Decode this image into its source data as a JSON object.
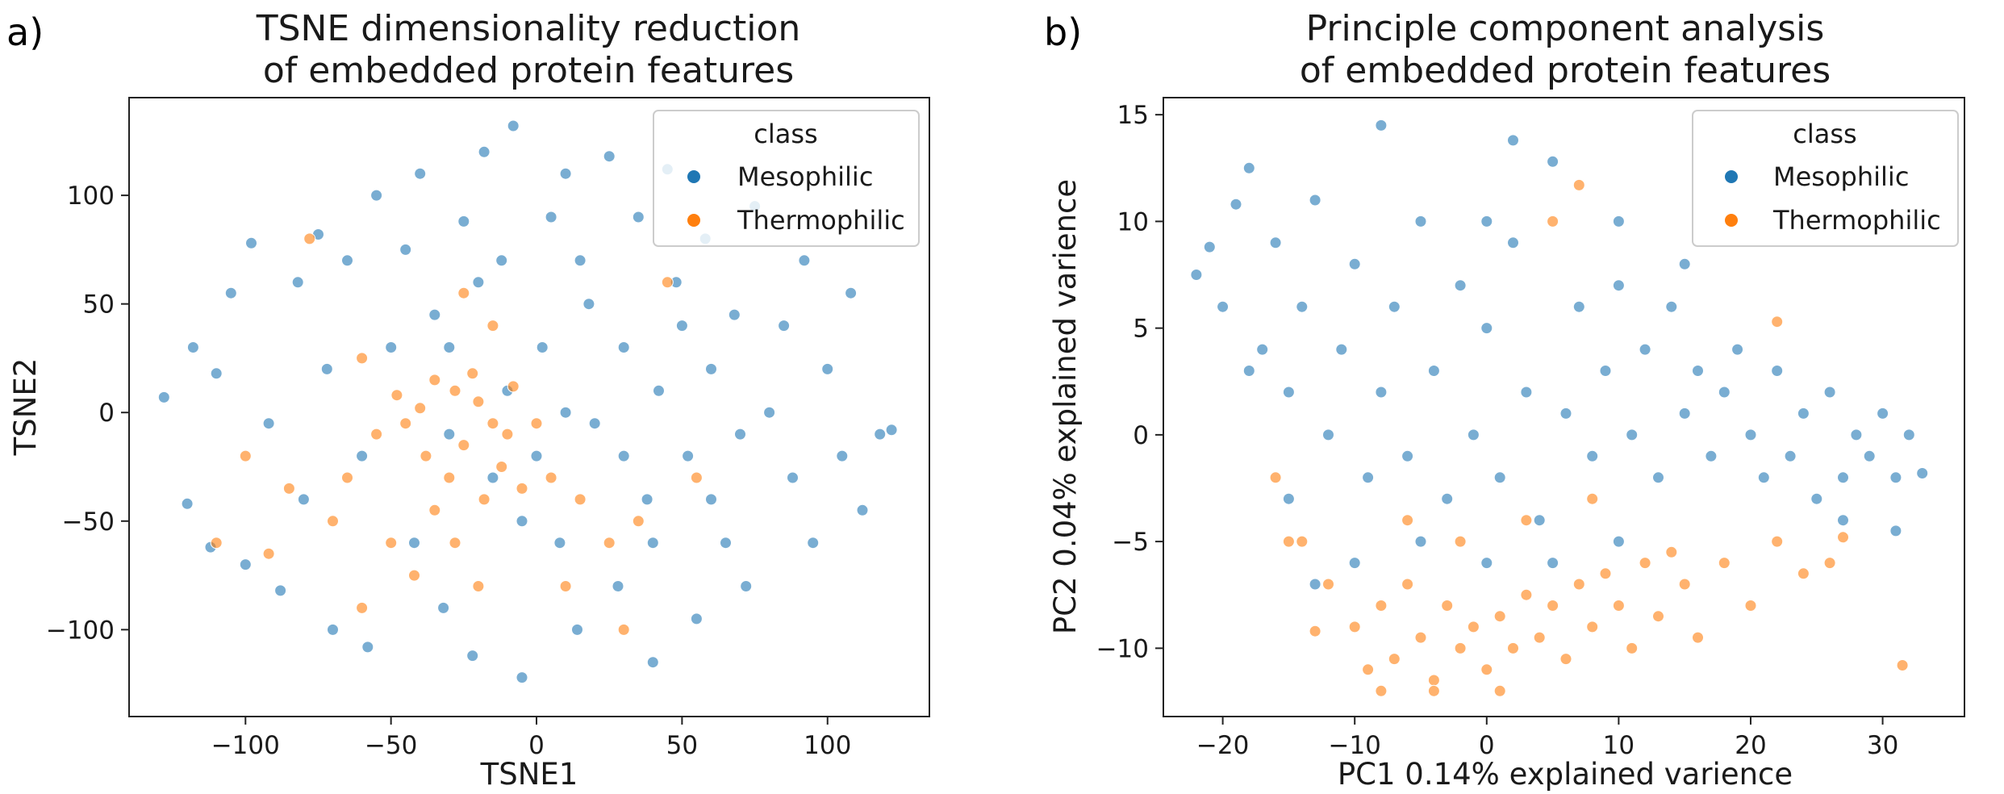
{
  "chart_data": [
    {
      "panel": "a)",
      "type": "scatter",
      "title": [
        "TSNE dimensionality reduction",
        "of embedded protein features"
      ],
      "xlabel": "TSNE1",
      "ylabel": "TSNE2",
      "xlim": [
        -140,
        135
      ],
      "ylim": [
        -140,
        145
      ],
      "xticks": [
        -100,
        -50,
        0,
        50,
        100
      ],
      "yticks": [
        -100,
        -50,
        0,
        50,
        100
      ],
      "grid": false,
      "legend": {
        "title": "class",
        "placement": "top-right"
      },
      "series": [
        {
          "name": "Mesophilic",
          "color": "#1f77b4",
          "points": [
            [
              -128,
              7
            ],
            [
              -120,
              -42
            ],
            [
              -118,
              30
            ],
            [
              -112,
              -62
            ],
            [
              -110,
              18
            ],
            [
              -105,
              55
            ],
            [
              -100,
              -70
            ],
            [
              -98,
              78
            ],
            [
              -92,
              -5
            ],
            [
              -88,
              -82
            ],
            [
              -82,
              60
            ],
            [
              -80,
              -40
            ],
            [
              -75,
              82
            ],
            [
              -72,
              20
            ],
            [
              -70,
              -100
            ],
            [
              -65,
              70
            ],
            [
              -60,
              -20
            ],
            [
              -58,
              -108
            ],
            [
              -55,
              100
            ],
            [
              -50,
              30
            ],
            [
              -45,
              75
            ],
            [
              -42,
              -60
            ],
            [
              -40,
              110
            ],
            [
              -35,
              45
            ],
            [
              -32,
              -90
            ],
            [
              -30,
              -10
            ],
            [
              -25,
              88
            ],
            [
              -22,
              -112
            ],
            [
              -18,
              120
            ],
            [
              -15,
              -30
            ],
            [
              -12,
              70
            ],
            [
              -8,
              132
            ],
            [
              -5,
              -122
            ],
            [
              0,
              -20
            ],
            [
              2,
              30
            ],
            [
              5,
              90
            ],
            [
              8,
              -60
            ],
            [
              10,
              110
            ],
            [
              14,
              -100
            ],
            [
              18,
              50
            ],
            [
              20,
              -5
            ],
            [
              25,
              118
            ],
            [
              28,
              -80
            ],
            [
              30,
              30
            ],
            [
              35,
              90
            ],
            [
              38,
              -40
            ],
            [
              40,
              -115
            ],
            [
              42,
              10
            ],
            [
              45,
              112
            ],
            [
              48,
              60
            ],
            [
              52,
              -20
            ],
            [
              55,
              -95
            ],
            [
              58,
              80
            ],
            [
              60,
              20
            ],
            [
              65,
              -60
            ],
            [
              68,
              45
            ],
            [
              72,
              -80
            ],
            [
              75,
              95
            ],
            [
              80,
              0
            ],
            [
              85,
              40
            ],
            [
              88,
              -30
            ],
            [
              92,
              70
            ],
            [
              95,
              -60
            ],
            [
              100,
              20
            ],
            [
              105,
              -20
            ],
            [
              108,
              55
            ],
            [
              112,
              -45
            ],
            [
              118,
              -10
            ],
            [
              122,
              -8
            ],
            [
              -20,
              60
            ],
            [
              -10,
              10
            ],
            [
              10,
              0
            ],
            [
              30,
              -20
            ],
            [
              50,
              40
            ],
            [
              70,
              -10
            ],
            [
              -30,
              30
            ],
            [
              15,
              70
            ],
            [
              -5,
              -50
            ],
            [
              40,
              -60
            ],
            [
              60,
              -40
            ]
          ]
        },
        {
          "name": "Thermophilic",
          "color": "#ff7f0e",
          "points": [
            [
              -48,
              8
            ],
            [
              -45,
              -5
            ],
            [
              -40,
              2
            ],
            [
              -38,
              -20
            ],
            [
              -35,
              15
            ],
            [
              -30,
              -30
            ],
            [
              -28,
              10
            ],
            [
              -25,
              -15
            ],
            [
              -22,
              18
            ],
            [
              -20,
              5
            ],
            [
              -18,
              -40
            ],
            [
              -15,
              -5
            ],
            [
              -12,
              -25
            ],
            [
              -8,
              12
            ],
            [
              -5,
              -35
            ],
            [
              -55,
              -10
            ],
            [
              -60,
              25
            ],
            [
              -65,
              -30
            ],
            [
              -70,
              -50
            ],
            [
              -78,
              80
            ],
            [
              -50,
              -60
            ],
            [
              -42,
              -75
            ],
            [
              -35,
              -45
            ],
            [
              -28,
              -60
            ],
            [
              -20,
              -80
            ],
            [
              -10,
              -10
            ],
            [
              0,
              -5
            ],
            [
              5,
              -30
            ],
            [
              15,
              -40
            ],
            [
              25,
              -60
            ],
            [
              35,
              -50
            ],
            [
              45,
              60
            ],
            [
              55,
              -30
            ],
            [
              -85,
              -35
            ],
            [
              -92,
              -65
            ],
            [
              -110,
              -60
            ],
            [
              -100,
              -20
            ],
            [
              -15,
              40
            ],
            [
              -25,
              55
            ],
            [
              30,
              -100
            ],
            [
              10,
              -80
            ],
            [
              -60,
              -90
            ]
          ]
        }
      ]
    },
    {
      "panel": "b)",
      "type": "scatter",
      "title": [
        "Principle component analysis",
        "of embedded protein features"
      ],
      "xlabel": "PC1 0.14% explained varience",
      "ylabel": "PC2 0.04% explained varience",
      "xlim": [
        -24.5,
        36.2
      ],
      "ylim": [
        -13.2,
        15.8
      ],
      "xticks": [
        -20,
        -10,
        0,
        10,
        20,
        30
      ],
      "yticks": [
        -10,
        -5,
        0,
        5,
        10,
        15
      ],
      "grid": false,
      "legend": {
        "title": "class",
        "placement": "top-right"
      },
      "series": [
        {
          "name": "Mesophilic",
          "color": "#1f77b4",
          "points": [
            [
              -22,
              7.5
            ],
            [
              -21,
              8.8
            ],
            [
              -20,
              6
            ],
            [
              -19,
              10.8
            ],
            [
              -18,
              12.5
            ],
            [
              -17,
              4
            ],
            [
              -16,
              9
            ],
            [
              -15,
              2
            ],
            [
              -14,
              6
            ],
            [
              -13,
              11
            ],
            [
              -12,
              0
            ],
            [
              -11,
              4
            ],
            [
              -10,
              8
            ],
            [
              -9,
              -2
            ],
            [
              -8,
              14.5
            ],
            [
              -8,
              2
            ],
            [
              -7,
              6
            ],
            [
              -6,
              -1
            ],
            [
              -5,
              10
            ],
            [
              -4,
              3
            ],
            [
              -3,
              -3
            ],
            [
              -2,
              7
            ],
            [
              -1,
              0
            ],
            [
              0,
              5
            ],
            [
              1,
              -2
            ],
            [
              2,
              9
            ],
            [
              3,
              2
            ],
            [
              4,
              -4
            ],
            [
              5,
              12.8
            ],
            [
              6,
              1
            ],
            [
              7,
              6
            ],
            [
              8,
              -1
            ],
            [
              9,
              3
            ],
            [
              10,
              7
            ],
            [
              11,
              0
            ],
            [
              12,
              4
            ],
            [
              13,
              -2
            ],
            [
              14,
              6
            ],
            [
              15,
              1
            ],
            [
              16,
              3
            ],
            [
              17,
              -1
            ],
            [
              18,
              2
            ],
            [
              19,
              4
            ],
            [
              20,
              0
            ],
            [
              21,
              -2
            ],
            [
              22,
              3
            ],
            [
              23,
              -1
            ],
            [
              24,
              1
            ],
            [
              25,
              -3
            ],
            [
              26,
              2
            ],
            [
              27,
              -2
            ],
            [
              28,
              0
            ],
            [
              29,
              -1
            ],
            [
              30,
              1
            ],
            [
              31,
              -2
            ],
            [
              32,
              0
            ],
            [
              33,
              -1.8
            ],
            [
              31,
              -4.5
            ],
            [
              27,
              -4
            ],
            [
              -5,
              -5
            ],
            [
              0,
              -6
            ],
            [
              5,
              -6
            ],
            [
              10,
              -5
            ],
            [
              -10,
              -6
            ],
            [
              -13,
              -7
            ],
            [
              2,
              13.8
            ],
            [
              -18,
              3
            ],
            [
              -15,
              -3
            ],
            [
              0,
              10
            ],
            [
              10,
              10
            ],
            [
              15,
              8
            ]
          ]
        },
        {
          "name": "Thermophilic",
          "color": "#ff7f0e",
          "points": [
            [
              -10,
              -9
            ],
            [
              -9,
              -11
            ],
            [
              -8,
              -8
            ],
            [
              -7,
              -10.5
            ],
            [
              -6,
              -7
            ],
            [
              -5,
              -9.5
            ],
            [
              -4,
              -11.5
            ],
            [
              -3,
              -8
            ],
            [
              -2,
              -10
            ],
            [
              -1,
              -9
            ],
            [
              0,
              -11
            ],
            [
              1,
              -8.5
            ],
            [
              2,
              -10
            ],
            [
              3,
              -7.5
            ],
            [
              4,
              -9.5
            ],
            [
              5,
              -8
            ],
            [
              6,
              -10.5
            ],
            [
              7,
              -7
            ],
            [
              8,
              -9
            ],
            [
              9,
              -6.5
            ],
            [
              10,
              -8
            ],
            [
              11,
              -10
            ],
            [
              12,
              -6
            ],
            [
              13,
              -8.5
            ],
            [
              14,
              -5.5
            ],
            [
              15,
              -7
            ],
            [
              16,
              -9.5
            ],
            [
              18,
              -6
            ],
            [
              20,
              -8
            ],
            [
              22,
              -5
            ],
            [
              24,
              -6.5
            ],
            [
              26,
              -6
            ],
            [
              27,
              -4.8
            ],
            [
              31.5,
              -10.8
            ],
            [
              -12,
              -7
            ],
            [
              -14,
              -5
            ],
            [
              -13,
              -9.2
            ],
            [
              -16,
              -2
            ],
            [
              -6,
              -4
            ],
            [
              -2,
              -5
            ],
            [
              3,
              -4
            ],
            [
              8,
              -3
            ],
            [
              5,
              10
            ],
            [
              7,
              11.7
            ],
            [
              22,
              5.3
            ],
            [
              -15,
              -5
            ],
            [
              -4,
              -12
            ],
            [
              1,
              -12
            ],
            [
              -8,
              -12
            ]
          ]
        }
      ]
    }
  ]
}
